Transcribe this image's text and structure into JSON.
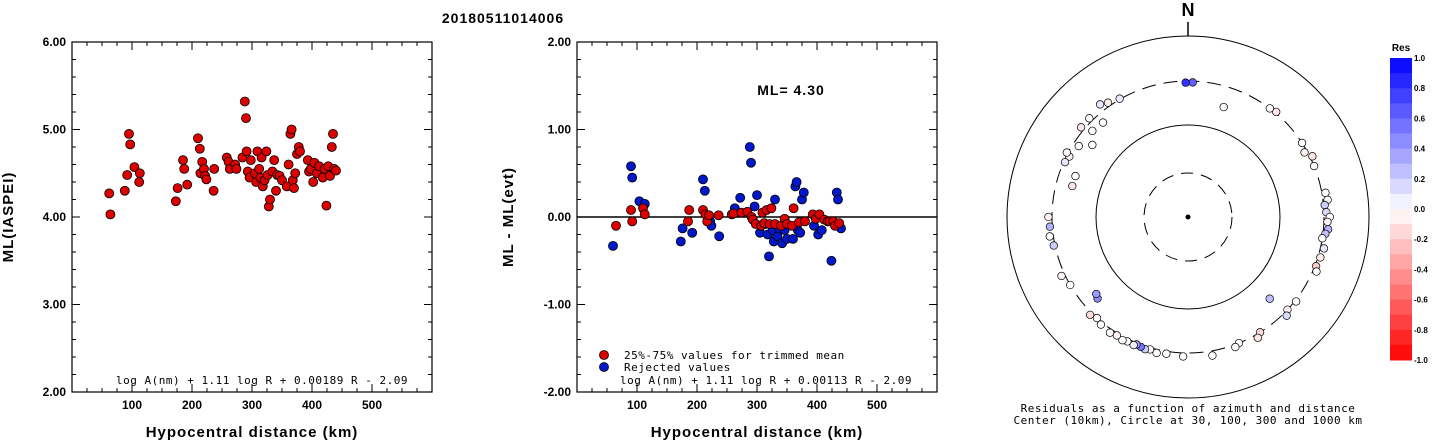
{
  "title": "20180511014006",
  "colors": {
    "accepted": "#dd0000",
    "rejected": "#0018cc"
  },
  "chart_data": [
    {
      "type": "scatter",
      "ylabel": "ML(IASPEI)",
      "xlabel": "Hypocentral distance (km)",
      "xlim": [
        0,
        600
      ],
      "ylim": [
        2,
        6
      ],
      "xticks": [
        "100",
        "200",
        "300",
        "400",
        "500"
      ],
      "yticks": [
        "2.00",
        "3.00",
        "4.00",
        "5.00",
        "6.00"
      ],
      "formula": "log A(nm) + 1.11 log R + 0.00189 R - 2.09",
      "points": [
        [
          62,
          4.27
        ],
        [
          64,
          4.03
        ],
        [
          88,
          4.3
        ],
        [
          92,
          4.48
        ],
        [
          95,
          4.95
        ],
        [
          97,
          4.83
        ],
        [
          104,
          4.57
        ],
        [
          112,
          4.4
        ],
        [
          113,
          4.5
        ],
        [
          173,
          4.18
        ],
        [
          176,
          4.33
        ],
        [
          185,
          4.65
        ],
        [
          187,
          4.55
        ],
        [
          192,
          4.37
        ],
        [
          210,
          4.9
        ],
        [
          213,
          4.78
        ],
        [
          214,
          4.5
        ],
        [
          217,
          4.63
        ],
        [
          220,
          4.55
        ],
        [
          222,
          4.47
        ],
        [
          224,
          4.43
        ],
        [
          236,
          4.3
        ],
        [
          237,
          4.55
        ],
        [
          258,
          4.68
        ],
        [
          261,
          4.63
        ],
        [
          263,
          4.55
        ],
        [
          272,
          4.6
        ],
        [
          274,
          4.55
        ],
        [
          284,
          4.68
        ],
        [
          288,
          5.32
        ],
        [
          290,
          5.13
        ],
        [
          291,
          4.75
        ],
        [
          293,
          4.52
        ],
        [
          296,
          4.45
        ],
        [
          298,
          4.65
        ],
        [
          305,
          4.5
        ],
        [
          307,
          4.4
        ],
        [
          309,
          4.75
        ],
        [
          312,
          4.55
        ],
        [
          314,
          4.45
        ],
        [
          316,
          4.68
        ],
        [
          318,
          4.35
        ],
        [
          321,
          4.42
        ],
        [
          324,
          4.75
        ],
        [
          326,
          4.48
        ],
        [
          328,
          4.12
        ],
        [
          330,
          4.2
        ],
        [
          334,
          4.52
        ],
        [
          337,
          4.65
        ],
        [
          340,
          4.3
        ],
        [
          342,
          4.48
        ],
        [
          346,
          4.47
        ],
        [
          350,
          4.42
        ],
        [
          358,
          4.35
        ],
        [
          361,
          4.6
        ],
        [
          364,
          4.95
        ],
        [
          366,
          5.0
        ],
        [
          368,
          4.42
        ],
        [
          370,
          4.33
        ],
        [
          372,
          4.5
        ],
        [
          375,
          4.72
        ],
        [
          378,
          4.8
        ],
        [
          380,
          4.75
        ],
        [
          393,
          4.65
        ],
        [
          395,
          4.52
        ],
        [
          398,
          4.55
        ],
        [
          402,
          4.4
        ],
        [
          404,
          4.62
        ],
        [
          408,
          4.5
        ],
        [
          412,
          4.58
        ],
        [
          418,
          4.45
        ],
        [
          421,
          4.55
        ],
        [
          424,
          4.13
        ],
        [
          427,
          4.58
        ],
        [
          430,
          4.47
        ],
        [
          433,
          4.8
        ],
        [
          435,
          4.95
        ],
        [
          437,
          4.55
        ],
        [
          440,
          4.53
        ]
      ]
    },
    {
      "type": "scatter",
      "ylabel": "ML - ML(evt)",
      "xlabel": "Hypocentral distance (km)",
      "xlim": [
        0,
        600
      ],
      "ylim": [
        -2,
        2
      ],
      "xticks": [
        "100",
        "200",
        "300",
        "400",
        "500"
      ],
      "yticks": [
        "-2.00",
        "-1.00",
        "0.00",
        "1.00",
        "2.00"
      ],
      "annotation": "ML= 4.30",
      "formula": "log A(nm) + 1.11 log R + 0.00113 R - 2.09",
      "legend": [
        "25%-75% values for trimmed mean",
        "Rejected values"
      ],
      "accepted": [
        [
          65,
          -0.1
        ],
        [
          90,
          0.08
        ],
        [
          92,
          -0.05
        ],
        [
          110,
          0.1
        ],
        [
          113,
          0.03
        ],
        [
          185,
          -0.05
        ],
        [
          187,
          0.08
        ],
        [
          210,
          0.08
        ],
        [
          214,
          0.03
        ],
        [
          217,
          -0.05
        ],
        [
          220,
          0.02
        ],
        [
          236,
          0.02
        ],
        [
          258,
          0.03
        ],
        [
          261,
          0.04
        ],
        [
          274,
          0.05
        ],
        [
          284,
          0.06
        ],
        [
          291,
          0.0
        ],
        [
          293,
          -0.03
        ],
        [
          298,
          -0.08
        ],
        [
          307,
          -0.1
        ],
        [
          309,
          0.05
        ],
        [
          312,
          -0.07
        ],
        [
          316,
          0.08
        ],
        [
          321,
          -0.08
        ],
        [
          324,
          0.1
        ],
        [
          330,
          -0.08
        ],
        [
          340,
          -0.1
        ],
        [
          346,
          -0.02
        ],
        [
          350,
          -0.08
        ],
        [
          358,
          -0.1
        ],
        [
          361,
          0.1
        ],
        [
          370,
          -0.06
        ],
        [
          380,
          -0.05
        ],
        [
          393,
          0.03
        ],
        [
          398,
          -0.02
        ],
        [
          404,
          0.03
        ],
        [
          412,
          -0.03
        ],
        [
          418,
          -0.05
        ],
        [
          421,
          -0.05
        ],
        [
          427,
          -0.05
        ],
        [
          430,
          -0.1
        ],
        [
          437,
          -0.07
        ]
      ],
      "rejected": [
        [
          60,
          -0.33
        ],
        [
          90,
          0.58
        ],
        [
          92,
          0.45
        ],
        [
          104,
          0.18
        ],
        [
          113,
          0.15
        ],
        [
          173,
          -0.28
        ],
        [
          176,
          -0.13
        ],
        [
          192,
          -0.18
        ],
        [
          210,
          0.43
        ],
        [
          213,
          0.3
        ],
        [
          222,
          -0.05
        ],
        [
          224,
          -0.1
        ],
        [
          237,
          -0.22
        ],
        [
          263,
          0.1
        ],
        [
          272,
          0.22
        ],
        [
          288,
          0.8
        ],
        [
          290,
          0.62
        ],
        [
          296,
          0.12
        ],
        [
          305,
          -0.18
        ],
        [
          314,
          -0.08
        ],
        [
          318,
          -0.2
        ],
        [
          326,
          -0.15
        ],
        [
          328,
          -0.28
        ],
        [
          334,
          -0.22
        ],
        [
          337,
          -0.13
        ],
        [
          342,
          -0.3
        ],
        [
          346,
          -0.15
        ],
        [
          364,
          0.35
        ],
        [
          366,
          0.4
        ],
        [
          368,
          -0.15
        ],
        [
          372,
          -0.18
        ],
        [
          375,
          0.2
        ],
        [
          378,
          0.28
        ],
        [
          395,
          -0.1
        ],
        [
          402,
          -0.2
        ],
        [
          408,
          -0.15
        ],
        [
          424,
          -0.5
        ],
        [
          433,
          0.28
        ],
        [
          435,
          0.2
        ],
        [
          440,
          -0.13
        ],
        [
          320,
          -0.45
        ],
        [
          300,
          0.25
        ],
        [
          330,
          0.2
        ],
        [
          350,
          -0.25
        ],
        [
          360,
          -0.25
        ]
      ]
    },
    {
      "type": "scatter",
      "subtype": "polar",
      "north_label": "N",
      "caption": [
        "Residuals as a function of azimuth and distance",
        "Center (10km), Circle at 30, 100, 300 and 1000 km"
      ],
      "colorbar_title": "Res",
      "colorbar_ticks": [
        "1.0",
        "0.8",
        "0.6",
        "0.4",
        "0.2",
        "0.0",
        "-0.2",
        "-0.4",
        "-0.6",
        "-0.8",
        "-1.0"
      ],
      "points": [
        {
          "az": 2,
          "dist": 290,
          "res": 0.62
        },
        {
          "az": 359,
          "dist": 288,
          "res": 0.8
        },
        {
          "az": 322,
          "dist": 360,
          "res": 0.1
        },
        {
          "az": 325,
          "dist": 330,
          "res": -0.08
        },
        {
          "az": 330,
          "dist": 305,
          "res": 0.08
        },
        {
          "az": 318,
          "dist": 240,
          "res": 0.0
        },
        {
          "az": 312,
          "dist": 250,
          "res": 0.0
        },
        {
          "az": 303,
          "dist": 260,
          "res": 0.0
        },
        {
          "az": 297,
          "dist": 280,
          "res": -0.05
        },
        {
          "az": 307,
          "dist": 200,
          "res": 0.0
        },
        {
          "az": 40,
          "dist": 310,
          "res": -0.1
        },
        {
          "az": 37,
          "dist": 300,
          "res": 0.0
        },
        {
          "az": 18,
          "dist": 180,
          "res": 0.0
        },
        {
          "az": 61,
          "dist": 280,
          "res": -0.05
        },
        {
          "az": 57,
          "dist": 300,
          "res": 0.0
        },
        {
          "az": 64,
          "dist": 320,
          "res": -0.1
        },
        {
          "az": 68,
          "dist": 300,
          "res": 0.0
        },
        {
          "az": 80,
          "dist": 330,
          "res": 0.0
        },
        {
          "az": 83,
          "dist": 340,
          "res": -0.05
        },
        {
          "az": 85,
          "dist": 310,
          "res": 0.2
        },
        {
          "az": 88,
          "dist": 320,
          "res": 0.15
        },
        {
          "az": 90,
          "dist": 350,
          "res": 0.0
        },
        {
          "az": 92,
          "dist": 330,
          "res": -0.05
        },
        {
          "az": 95,
          "dist": 340,
          "res": 0.3
        },
        {
          "az": 97,
          "dist": 320,
          "res": 0.25
        },
        {
          "az": 99,
          "dist": 300,
          "res": 0.0
        },
        {
          "az": 103,
          "dist": 330,
          "res": 0.1
        },
        {
          "az": 107,
          "dist": 320,
          "res": -0.08
        },
        {
          "az": 111,
          "dist": 310,
          "res": -0.2
        },
        {
          "az": 113,
          "dist": 330,
          "res": 0.0
        },
        {
          "az": 128,
          "dist": 310,
          "res": 0.0
        },
        {
          "az": 133,
          "dist": 300,
          "res": -0.05
        },
        {
          "az": 135,
          "dist": 330,
          "res": 0.15
        },
        {
          "az": 135,
          "dist": 180,
          "res": 0.25
        },
        {
          "az": 148,
          "dist": 300,
          "res": -0.15
        },
        {
          "az": 150,
          "dist": 330,
          "res": -0.1
        },
        {
          "az": 158,
          "dist": 300,
          "res": 0.0
        },
        {
          "az": 160,
          "dist": 320,
          "res": 0.0
        },
        {
          "az": 170,
          "dist": 340,
          "res": 0.0
        },
        {
          "az": 182,
          "dist": 330,
          "res": 0.0
        },
        {
          "az": 189,
          "dist": 320,
          "res": 0.0
        },
        {
          "az": 193,
          "dist": 330,
          "res": 0.0
        },
        {
          "az": 196,
          "dist": 315,
          "res": 0.0
        },
        {
          "az": 198,
          "dist": 325,
          "res": 0.2
        },
        {
          "az": 200,
          "dist": 318,
          "res": 0.55
        },
        {
          "az": 202,
          "dist": 312,
          "res": 0.4
        },
        {
          "az": 203,
          "dist": 326,
          "res": 0.05
        },
        {
          "az": 206,
          "dist": 320,
          "res": 0.0
        },
        {
          "az": 208,
          "dist": 330,
          "res": 0.0
        },
        {
          "az": 211,
          "dist": 318,
          "res": -0.05
        },
        {
          "az": 214,
          "dist": 330,
          "res": 0.0
        },
        {
          "az": 219,
          "dist": 320,
          "res": 0.0
        },
        {
          "az": 225,
          "dist": 320,
          "res": -0.15
        },
        {
          "az": 222,
          "dist": 300,
          "res": 0.0
        },
        {
          "az": 228,
          "dist": 210,
          "res": 0.45
        },
        {
          "az": 230,
          "dist": 200,
          "res": 0.4
        },
        {
          "az": 240,
          "dist": 300,
          "res": 0.0
        },
        {
          "az": 245,
          "dist": 330,
          "res": -0.05
        },
        {
          "az": 258,
          "dist": 310,
          "res": 0.2
        },
        {
          "az": 262,
          "dist": 330,
          "res": 0.0
        },
        {
          "az": 266,
          "dist": 320,
          "res": 0.3
        },
        {
          "az": 270,
          "dist": 330,
          "res": -0.05
        },
        {
          "az": 285,
          "dist": 200,
          "res": -0.1
        },
        {
          "az": 290,
          "dist": 200,
          "res": 0.0
        },
        {
          "az": 294,
          "dist": 290,
          "res": 0.1
        },
        {
          "az": 298,
          "dist": 310,
          "res": -0.05
        },
        {
          "az": 315,
          "dist": 330,
          "res": 0.0
        },
        {
          "az": 310,
          "dist": 330,
          "res": -0.1
        }
      ]
    }
  ]
}
